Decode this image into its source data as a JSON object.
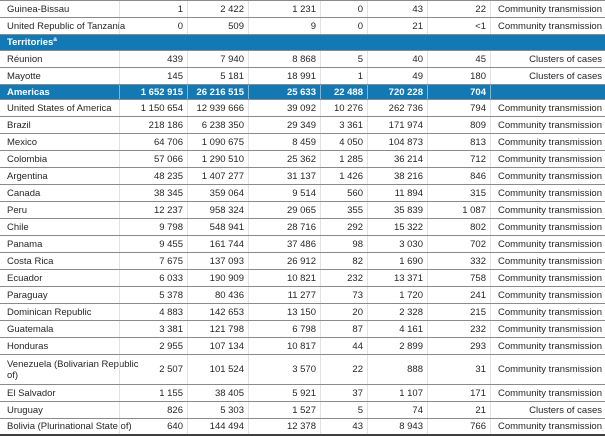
{
  "colors": {
    "section_header_blue": "#1379B5",
    "row_border_gray": "#8A8A8A",
    "table_end_border": "#3F3F3F",
    "body_text": "#262626",
    "header_text": "#FFFFFF"
  },
  "table": {
    "rows": [
      {
        "type": "country",
        "name": "Guinea-Bissau",
        "values": [
          "1",
          "2 422",
          "1 231",
          "0",
          "43",
          "22"
        ],
        "classification": "Community transmission"
      },
      {
        "type": "country",
        "name": "United Republic of Tanzania",
        "values": [
          "0",
          "509",
          "9",
          "0",
          "21",
          "<1"
        ],
        "classification": "Community transmission"
      },
      {
        "type": "section",
        "name": "Territories",
        "footnote_marker": "a"
      },
      {
        "type": "country",
        "name": "Réunion",
        "values": [
          "439",
          "7 940",
          "8 868",
          "5",
          "40",
          "45"
        ],
        "classification": "Clusters of cases"
      },
      {
        "type": "country",
        "name": "Mayotte",
        "values": [
          "145",
          "5 181",
          "18 991",
          "1",
          "49",
          "180"
        ],
        "classification": "Clusters of cases"
      },
      {
        "type": "region",
        "name": "Americas",
        "values": [
          "1 652 915",
          "26 216 515",
          "25 633",
          "22 488",
          "720 228",
          "704"
        ],
        "classification": ""
      },
      {
        "type": "country",
        "name": "United States of America",
        "values": [
          "1 150 654",
          "12 939 666",
          "39 092",
          "10 276",
          "262 736",
          "794"
        ],
        "classification": "Community transmission"
      },
      {
        "type": "country",
        "name": "Brazil",
        "values": [
          "218 186",
          "6 238 350",
          "29 349",
          "3 361",
          "171 974",
          "809"
        ],
        "classification": "Community transmission"
      },
      {
        "type": "country",
        "name": "Mexico",
        "values": [
          "64 706",
          "1 090 675",
          "8 459",
          "4 050",
          "104 873",
          "813"
        ],
        "classification": "Community transmission"
      },
      {
        "type": "country",
        "name": "Colombia",
        "values": [
          "57 066",
          "1 290 510",
          "25 362",
          "1 285",
          "36 214",
          "712"
        ],
        "classification": "Community transmission"
      },
      {
        "type": "country",
        "name": "Argentina",
        "values": [
          "48 235",
          "1 407 277",
          "31 137",
          "1 426",
          "38 216",
          "846"
        ],
        "classification": "Community transmission"
      },
      {
        "type": "country",
        "name": "Canada",
        "values": [
          "38 345",
          "359 064",
          "9 514",
          "560",
          "11 894",
          "315"
        ],
        "classification": "Community transmission"
      },
      {
        "type": "country",
        "name": "Peru",
        "values": [
          "12 237",
          "958 324",
          "29 065",
          "355",
          "35 839",
          "1 087"
        ],
        "classification": "Community transmission"
      },
      {
        "type": "country",
        "name": "Chile",
        "values": [
          "9 798",
          "548 941",
          "28 716",
          "292",
          "15 322",
          "802"
        ],
        "classification": "Community transmission"
      },
      {
        "type": "country",
        "name": "Panama",
        "values": [
          "9 455",
          "161 744",
          "37 486",
          "98",
          "3 030",
          "702"
        ],
        "classification": "Community transmission"
      },
      {
        "type": "country",
        "name": "Costa Rica",
        "values": [
          "7 675",
          "137 093",
          "26 912",
          "82",
          "1 690",
          "332"
        ],
        "classification": "Community transmission"
      },
      {
        "type": "country",
        "name": "Ecuador",
        "values": [
          "6 033",
          "190 909",
          "10 821",
          "232",
          "13 371",
          "758"
        ],
        "classification": "Community transmission"
      },
      {
        "type": "country",
        "name": "Paraguay",
        "values": [
          "5 378",
          "80 436",
          "11 277",
          "73",
          "1 720",
          "241"
        ],
        "classification": "Community transmission"
      },
      {
        "type": "country",
        "name": "Dominican Republic",
        "values": [
          "4 883",
          "142 653",
          "13 150",
          "20",
          "2 328",
          "215"
        ],
        "classification": "Community transmission"
      },
      {
        "type": "country",
        "name": "Guatemala",
        "values": [
          "3 381",
          "121 798",
          "6 798",
          "87",
          "4 161",
          "232"
        ],
        "classification": "Community transmission"
      },
      {
        "type": "country",
        "name": "Honduras",
        "values": [
          "2 955",
          "107 134",
          "10 817",
          "44",
          "2 899",
          "293"
        ],
        "classification": "Community transmission"
      },
      {
        "type": "country",
        "name": "Venezuela (Bolivarian Republic\nof)",
        "values": [
          "2 507",
          "101 524",
          "3 570",
          "22",
          "888",
          "31"
        ],
        "classification": "Community transmission"
      },
      {
        "type": "country",
        "name": "El Salvador",
        "values": [
          "1 155",
          "38 405",
          "5 921",
          "37",
          "1 107",
          "171"
        ],
        "classification": "Community transmission"
      },
      {
        "type": "country",
        "name": "Uruguay",
        "values": [
          "826",
          "5 303",
          "1 527",
          "5",
          "74",
          "21"
        ],
        "classification": "Clusters of cases"
      },
      {
        "type": "country",
        "name": "Bolivia (Plurinational State of)",
        "values": [
          "640",
          "144 494",
          "12 378",
          "43",
          "8 943",
          "766"
        ],
        "classification": "Community transmission"
      }
    ]
  }
}
